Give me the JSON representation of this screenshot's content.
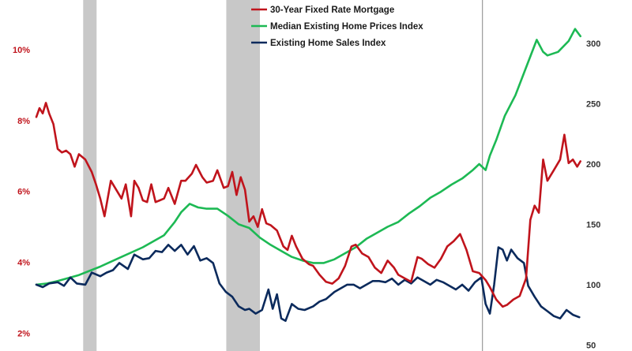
{
  "chart_data": {
    "type": "line",
    "title": "",
    "xlabel": "",
    "legend_position": "top-center",
    "colors": {
      "mortgage": "#c0141c",
      "prices": "#1db954",
      "sales": "#0b2a5c",
      "left_axis": "#c0141c",
      "right_axis": "#333333",
      "recession": "#c8c8c8",
      "marker_line": "#9a9a9a"
    },
    "x_range": [
      1999.0,
      2024.6
    ],
    "recession_bands": [
      [
        2001.2,
        2001.83
      ],
      [
        2007.92,
        2009.5
      ]
    ],
    "marker_line_x": 2019.95,
    "axes": {
      "left": {
        "unit": "percent",
        "range": [
          1.5,
          11.4
        ],
        "ticks": [
          2,
          4,
          6,
          8,
          10
        ],
        "tick_labels": [
          "2%",
          "4%",
          "6%",
          "8%",
          "10%"
        ]
      },
      "right": {
        "range": [
          45,
          336
        ],
        "ticks": [
          50,
          100,
          150,
          200,
          250,
          300
        ],
        "tick_labels": [
          "50",
          "100",
          "150",
          "200",
          "250",
          "300"
        ]
      }
    },
    "series": [
      {
        "name": "30-Year Fixed Rate Mortgage",
        "axis": "left",
        "key": "mortgage",
        "x": [
          1999.0,
          1999.15,
          1999.3,
          1999.45,
          1999.6,
          1999.8,
          2000.0,
          2000.2,
          2000.4,
          2000.6,
          2000.8,
          2001.0,
          2001.3,
          2001.6,
          2001.8,
          2002.0,
          2002.2,
          2002.5,
          2002.8,
          2003.0,
          2003.2,
          2003.45,
          2003.6,
          2003.8,
          2004.0,
          2004.2,
          2004.4,
          2004.6,
          2004.8,
          2005.0,
          2005.2,
          2005.5,
          2005.8,
          2006.0,
          2006.3,
          2006.5,
          2006.8,
          2007.0,
          2007.3,
          2007.5,
          2007.8,
          2008.0,
          2008.2,
          2008.4,
          2008.6,
          2008.8,
          2009.0,
          2009.2,
          2009.4,
          2009.6,
          2009.8,
          2010.0,
          2010.3,
          2010.6,
          2010.8,
          2011.0,
          2011.2,
          2011.5,
          2011.8,
          2012.0,
          2012.3,
          2012.6,
          2012.9,
          2013.2,
          2013.5,
          2013.8,
          2014.0,
          2014.3,
          2014.6,
          2014.9,
          2015.2,
          2015.5,
          2015.8,
          2016.0,
          2016.3,
          2016.6,
          2016.9,
          2017.1,
          2017.4,
          2017.7,
          2018.0,
          2018.3,
          2018.6,
          2018.9,
          2019.2,
          2019.5,
          2019.8,
          2020.1,
          2020.3,
          2020.6,
          2020.9,
          2021.1,
          2021.4,
          2021.7,
          2022.0,
          2022.2,
          2022.4,
          2022.6,
          2022.8,
          2023.0,
          2023.3,
          2023.6,
          2023.8,
          2024.0,
          2024.2,
          2024.4,
          2024.55
        ],
        "y": [
          8.1,
          8.35,
          8.2,
          8.5,
          8.2,
          7.9,
          7.2,
          7.1,
          7.15,
          7.05,
          6.7,
          7.05,
          6.9,
          6.55,
          6.2,
          5.8,
          5.3,
          6.3,
          6.0,
          5.8,
          6.2,
          5.3,
          6.3,
          6.1,
          5.75,
          5.7,
          6.2,
          5.7,
          5.75,
          5.8,
          6.1,
          5.65,
          6.3,
          6.3,
          6.5,
          6.75,
          6.4,
          6.25,
          6.3,
          6.6,
          6.1,
          6.15,
          6.55,
          5.9,
          6.4,
          6.05,
          5.15,
          5.3,
          5.0,
          5.5,
          5.1,
          5.05,
          4.9,
          4.45,
          4.35,
          4.75,
          4.45,
          4.1,
          3.95,
          3.9,
          3.65,
          3.45,
          3.4,
          3.55,
          3.9,
          4.45,
          4.5,
          4.25,
          4.15,
          3.85,
          3.7,
          4.05,
          3.85,
          3.65,
          3.55,
          3.45,
          4.15,
          4.1,
          3.95,
          3.85,
          4.1,
          4.45,
          4.6,
          4.8,
          4.35,
          3.75,
          3.7,
          3.5,
          3.3,
          2.95,
          2.75,
          2.8,
          2.95,
          3.05,
          3.55,
          5.2,
          5.6,
          5.4,
          6.9,
          6.3,
          6.6,
          6.9,
          7.6,
          6.8,
          6.9,
          6.7,
          6.85
        ]
      },
      {
        "name": "Median Existing Home Prices Index",
        "axis": "right",
        "key": "prices",
        "x": [
          1999.0,
          1999.5,
          2000.0,
          2001.0,
          2002.0,
          2003.0,
          2004.0,
          2005.0,
          2005.5,
          2005.8,
          2006.2,
          2006.6,
          2007.0,
          2007.5,
          2008.0,
          2008.5,
          2009.0,
          2009.5,
          2010.0,
          2010.5,
          2011.0,
          2011.5,
          2012.0,
          2012.5,
          2013.0,
          2013.5,
          2014.0,
          2014.5,
          2015.0,
          2015.5,
          2016.0,
          2016.5,
          2017.0,
          2017.5,
          2018.0,
          2018.5,
          2019.0,
          2019.5,
          2019.8,
          2020.1,
          2020.3,
          2020.6,
          2021.0,
          2021.5,
          2022.0,
          2022.5,
          2022.8,
          2023.0,
          2023.5,
          2024.0,
          2024.3,
          2024.55
        ],
        "y": [
          100,
          101,
          103,
          108,
          115,
          123,
          131,
          141,
          152,
          160,
          167,
          164,
          163,
          163,
          157,
          150,
          147,
          139,
          133,
          128,
          123,
          120,
          118,
          118,
          121,
          126,
          131,
          138,
          143,
          148,
          152,
          159,
          165,
          172,
          177,
          183,
          188,
          195,
          200,
          195,
          207,
          220,
          240,
          257,
          280,
          303,
          293,
          290,
          293,
          302,
          312,
          306
        ]
      },
      {
        "name": "Existing Home Sales Index",
        "axis": "right",
        "key": "sales",
        "x": [
          1999.0,
          1999.3,
          1999.6,
          2000.0,
          2000.3,
          2000.6,
          2000.9,
          2001.3,
          2001.6,
          2002.0,
          2002.3,
          2002.6,
          2002.9,
          2003.3,
          2003.6,
          2004.0,
          2004.3,
          2004.6,
          2004.9,
          2005.2,
          2005.5,
          2005.8,
          2006.1,
          2006.4,
          2006.7,
          2007.0,
          2007.3,
          2007.6,
          2007.9,
          2008.2,
          2008.5,
          2008.8,
          2009.0,
          2009.3,
          2009.6,
          2009.9,
          2010.1,
          2010.3,
          2010.5,
          2010.7,
          2011.0,
          2011.3,
          2011.6,
          2012.0,
          2012.3,
          2012.6,
          2013.0,
          2013.3,
          2013.6,
          2013.9,
          2014.2,
          2014.5,
          2014.8,
          2015.1,
          2015.4,
          2015.7,
          2016.0,
          2016.3,
          2016.6,
          2016.9,
          2017.2,
          2017.5,
          2017.8,
          2018.1,
          2018.4,
          2018.7,
          2019.0,
          2019.3,
          2019.6,
          2019.9,
          2020.1,
          2020.3,
          2020.5,
          2020.7,
          2020.9,
          2021.1,
          2021.3,
          2021.6,
          2021.9,
          2022.1,
          2022.4,
          2022.7,
          2023.0,
          2023.3,
          2023.6,
          2023.9,
          2024.2,
          2024.5
        ],
        "y": [
          100,
          98,
          101,
          102,
          99,
          106,
          101,
          100,
          110,
          107,
          110,
          112,
          118,
          113,
          125,
          121,
          122,
          128,
          127,
          133,
          128,
          133,
          125,
          132,
          120,
          122,
          118,
          101,
          94,
          90,
          82,
          79,
          80,
          76,
          79,
          96,
          80,
          92,
          72,
          70,
          84,
          80,
          79,
          82,
          86,
          88,
          94,
          97,
          100,
          100,
          97,
          100,
          103,
          103,
          102,
          105,
          100,
          104,
          101,
          106,
          103,
          100,
          104,
          102,
          99,
          96,
          100,
          95,
          102,
          106,
          84,
          76,
          100,
          131,
          129,
          120,
          129,
          122,
          118,
          99,
          90,
          82,
          78,
          74,
          72,
          79,
          75,
          73
        ]
      }
    ]
  }
}
